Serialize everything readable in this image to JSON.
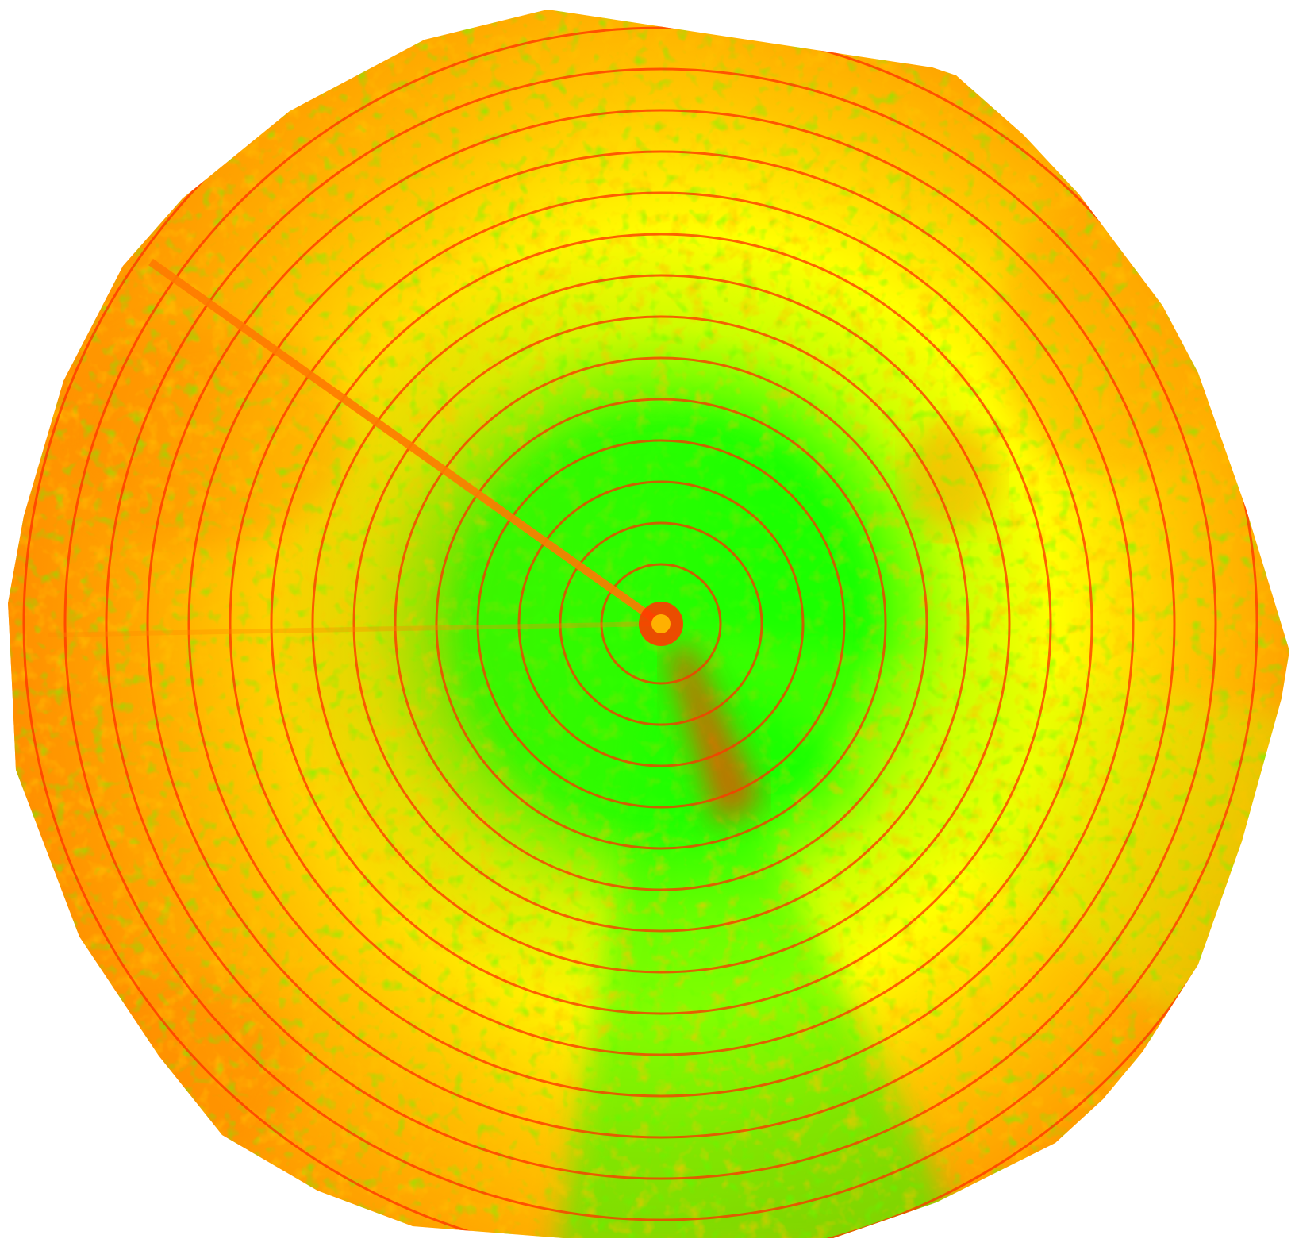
{
  "map": {
    "type": "center-pivot field vegetation index map",
    "palette": {
      "high": "#1aff00",
      "mid_high": "#c8ff00",
      "mid": "#ffff00",
      "mid_low": "#ffb000",
      "low": "#ff8a00",
      "very_low": "#ff2a00",
      "background": "#ffffff"
    },
    "pivot_ring_count": 16,
    "features": [
      "pivot-center",
      "pivot-arm-track",
      "wheel-track-rings",
      "stressed-wedge"
    ]
  }
}
